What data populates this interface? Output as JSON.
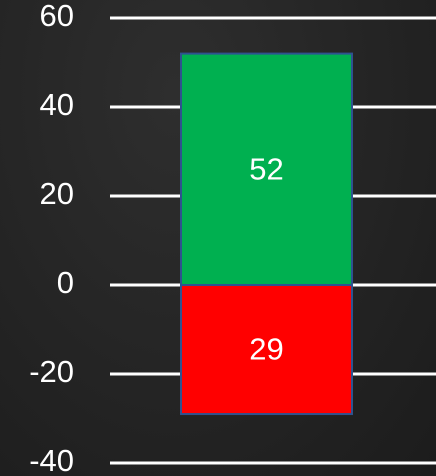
{
  "chart_data": {
    "type": "bar",
    "stacked": true,
    "categories": [
      null
    ],
    "series": [
      {
        "color": "#00b050",
        "values": [
          52
        ],
        "value_labels": [
          "52"
        ]
      },
      {
        "color": "#ff0000",
        "values": [
          -29
        ],
        "value_labels": [
          "29"
        ]
      }
    ],
    "ylim": [
      -40,
      60
    ],
    "yticks": [
      -40,
      -20,
      0,
      20,
      40,
      60
    ],
    "grid": true
  }
}
